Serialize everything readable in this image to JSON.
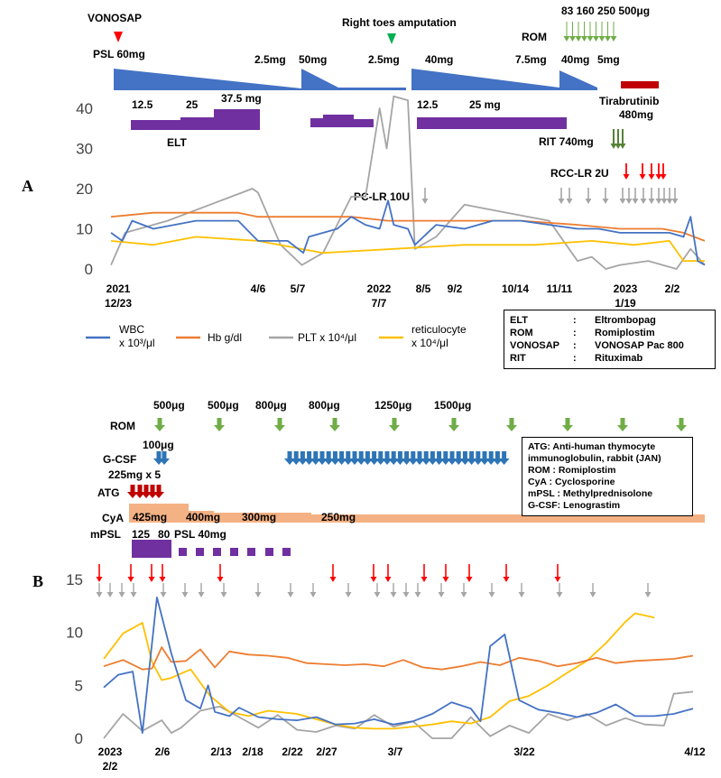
{
  "colors": {
    "wbc": "#4472C4",
    "hb": "#ED7D31",
    "plt": "#A5A5A5",
    "retic": "#FFC000",
    "psl": "#4472C4",
    "elt": "#7030A0",
    "tirab": "#C00000",
    "red_arrow": "#FF0000",
    "gray_arrow": "#A5A5A5",
    "green": "#70AD47",
    "rit": "#548235",
    "gcsf": "#2E75B6",
    "atg": "#C00000",
    "cya": "#F4B183",
    "mpsl": "#7030A0"
  },
  "panelA": {
    "label": "A",
    "vonosap": "VONOSAP",
    "psl_start": "PSL 60mg",
    "psl_doses": [
      "2.5mg",
      "50mg",
      "2.5mg",
      "40mg",
      "7.5mg",
      "40mg",
      "5mg"
    ],
    "amputation": "Right toes amputation",
    "rom_label": "ROM",
    "rom_doses": "83 160 250 500μg",
    "tirab_label": "Tirabrutinib",
    "tirab_dose": "480mg",
    "elt_doses": [
      "12.5",
      "25",
      "37.5 mg",
      "12.5",
      "25 mg"
    ],
    "elt_label": "ELT",
    "rit": "RIT 740mg",
    "rcc": "RCC-LR 2U",
    "pc": "PC-LR 10U",
    "date_labels": [
      [
        "2021",
        "12/23"
      ],
      [
        "4/6"
      ],
      [
        "5/7"
      ],
      [
        "2022",
        "7/7"
      ],
      [
        "8/5"
      ],
      [
        "9/2"
      ],
      [
        "10/14"
      ],
      [
        "11/11"
      ],
      [
        "2023",
        "1/19"
      ],
      [
        "2/2"
      ]
    ]
  },
  "legend": {
    "wbc": [
      "WBC",
      "x 10³/μl"
    ],
    "hb": "Hb g/dl",
    "plt": "PLT x 10⁴/μl",
    "retic": [
      "reticulocyte",
      "x 10⁴/μl"
    ]
  },
  "abbrA": [
    {
      "abbr": "ELT",
      "sep": ":",
      "full": "Eltrombopag"
    },
    {
      "abbr": "ROM",
      "sep": ":",
      "full": "Romiplostim"
    },
    {
      "abbr": "VONOSAP",
      "sep": ":",
      "full": "VONOSAP Pac 800"
    },
    {
      "abbr": "RIT",
      "sep": ":",
      "full": "Rituximab"
    }
  ],
  "panelB": {
    "label": "B",
    "rom_label": "ROM",
    "rom_doses": [
      "500μg",
      "500μg",
      "800μg",
      "800μg",
      "1250μg",
      "1500μg"
    ],
    "gcsf_label": "G-CSF",
    "gcsf_dose": "100μg",
    "atg_label": "ATG",
    "atg_dose": "225mg x 5",
    "cya_label": "CyA",
    "cya_doses": [
      "425mg",
      "400mg",
      "300mg",
      "250mg"
    ],
    "mpsl_label": "mPSL",
    "mpsl_doses": [
      "125",
      "80",
      "PSL 40mg"
    ],
    "date_labels": [
      [
        "2023",
        "2/2"
      ],
      [
        "2/6"
      ],
      [
        "2/13"
      ],
      [
        "2/18"
      ],
      [
        "2/22"
      ],
      [
        "2/27"
      ],
      [
        "3/7"
      ],
      [
        "3/22"
      ],
      [
        "4/12"
      ]
    ]
  },
  "abbrB": [
    "ATG: Anti-human thymocyte",
    "immunoglobulin, rabbit (JAN)",
    "ROM  : Romiplostim",
    "CyA   : Cyclosporine",
    "mPSL : Methylprednisolone",
    "G-CSF: Lenograstim"
  ],
  "chart_data": [
    {
      "type": "line",
      "title": "",
      "ylim": [
        0,
        45
      ],
      "yticks": [
        0,
        10,
        20,
        30,
        40
      ],
      "x_note": "day index from 2021-12-23",
      "series": [
        {
          "name": "WBC x 10³/μl",
          "points": [
            [
              0,
              9
            ],
            [
              8,
              7
            ],
            [
              15,
              12
            ],
            [
              30,
              10
            ],
            [
              60,
              12
            ],
            [
              90,
              12
            ],
            [
              104,
              7
            ],
            [
              125,
              7
            ],
            [
              136,
              4
            ],
            [
              140,
              8
            ],
            [
              160,
              10
            ],
            [
              170,
              13
            ],
            [
              180,
              11
            ],
            [
              190,
              10
            ],
            [
              196,
              17
            ],
            [
              200,
              11
            ],
            [
              210,
              10
            ],
            [
              215,
              6
            ],
            [
              230,
              11
            ],
            [
              250,
              10
            ],
            [
              270,
              12
            ],
            [
              290,
              12
            ],
            [
              310,
              11
            ],
            [
              330,
              10
            ],
            [
              345,
              10
            ],
            [
              360,
              9
            ],
            [
              380,
              9
            ],
            [
              395,
              9
            ],
            [
              405,
              8
            ],
            [
              410,
              13
            ],
            [
              415,
              2
            ],
            [
              420,
              1
            ]
          ]
        },
        {
          "name": "Hb g/dl",
          "points": [
            [
              0,
              13
            ],
            [
              30,
              14
            ],
            [
              60,
              14
            ],
            [
              90,
              14
            ],
            [
              104,
              13
            ],
            [
              136,
              13
            ],
            [
              170,
              13
            ],
            [
              196,
              12
            ],
            [
              220,
              12
            ],
            [
              250,
              12
            ],
            [
              290,
              12
            ],
            [
              330,
              11
            ],
            [
              360,
              10
            ],
            [
              390,
              10
            ],
            [
              405,
              9
            ],
            [
              420,
              7
            ]
          ]
        },
        {
          "name": "PLT x 10⁴/μl",
          "points": [
            [
              0,
              1
            ],
            [
              10,
              9
            ],
            [
              40,
              12
            ],
            [
              70,
              16
            ],
            [
              100,
              20
            ],
            [
              104,
              19
            ],
            [
              120,
              6
            ],
            [
              135,
              1
            ],
            [
              150,
              4
            ],
            [
              170,
              18
            ],
            [
              180,
              18
            ],
            [
              190,
              40
            ],
            [
              195,
              30
            ],
            [
              200,
              43
            ],
            [
              210,
              42
            ],
            [
              215,
              5
            ],
            [
              230,
              8
            ],
            [
              250,
              16
            ],
            [
              280,
              14
            ],
            [
              310,
              12
            ],
            [
              330,
              2
            ],
            [
              340,
              3
            ],
            [
              350,
              0
            ],
            [
              360,
              1
            ],
            [
              380,
              2
            ],
            [
              400,
              0
            ],
            [
              410,
              5
            ],
            [
              420,
              1
            ]
          ]
        },
        {
          "name": "reticulocyte x 10⁴/μl",
          "points": [
            [
              0,
              7
            ],
            [
              30,
              6
            ],
            [
              60,
              8
            ],
            [
              104,
              7
            ],
            [
              150,
              4
            ],
            [
              200,
              5
            ],
            [
              250,
              6
            ],
            [
              300,
              6
            ],
            [
              340,
              7
            ],
            [
              370,
              6
            ],
            [
              395,
              7
            ],
            [
              405,
              2
            ],
            [
              420,
              2
            ]
          ]
        }
      ]
    },
    {
      "type": "line",
      "title": "",
      "ylim": [
        0,
        15
      ],
      "yticks": [
        0,
        5,
        10,
        15
      ],
      "x_note": "day index from 2023-02-02",
      "series": [
        {
          "name": "WBC x 10³/μl",
          "points": [
            [
              0,
              4.8
            ],
            [
              1.5,
              6
            ],
            [
              3,
              6.3
            ],
            [
              4,
              0.5
            ],
            [
              5.5,
              13.3
            ],
            [
              7,
              8
            ],
            [
              8.5,
              3.6
            ],
            [
              10,
              2.8
            ],
            [
              10.8,
              5
            ],
            [
              11.5,
              2.5
            ],
            [
              13,
              2.1
            ],
            [
              14,
              2.9
            ],
            [
              16,
              2
            ],
            [
              18,
              1.8
            ],
            [
              20,
              1.7
            ],
            [
              22,
              2
            ],
            [
              24,
              1.3
            ],
            [
              26,
              1.4
            ],
            [
              28,
              1.8
            ],
            [
              30,
              1.3
            ],
            [
              32,
              1.6
            ],
            [
              34,
              2.3
            ],
            [
              36,
              3.4
            ],
            [
              38,
              2.8
            ],
            [
              39,
              1.6
            ],
            [
              40,
              8.7
            ],
            [
              41.5,
              9.8
            ],
            [
              43,
              3.6
            ],
            [
              45,
              2.7
            ],
            [
              47,
              2.4
            ],
            [
              49,
              2
            ],
            [
              51,
              2.4
            ],
            [
              53,
              3.2
            ],
            [
              55,
              2.1
            ],
            [
              57,
              2.1
            ],
            [
              59,
              2.3
            ],
            [
              61,
              2.8
            ]
          ]
        },
        {
          "name": "Hb g/dl",
          "points": [
            [
              0,
              6.8
            ],
            [
              2,
              7.4
            ],
            [
              4,
              6.5
            ],
            [
              5,
              6.6
            ],
            [
              6,
              8.6
            ],
            [
              7,
              7.2
            ],
            [
              8.5,
              7.3
            ],
            [
              10,
              8.4
            ],
            [
              11.5,
              6.7
            ],
            [
              13,
              8.2
            ],
            [
              15,
              7.9
            ],
            [
              17,
              7.8
            ],
            [
              19,
              7.6
            ],
            [
              21,
              7.1
            ],
            [
              23,
              7.0
            ],
            [
              25,
              6.9
            ],
            [
              27,
              7.0
            ],
            [
              29,
              6.8
            ],
            [
              31,
              7.4
            ],
            [
              33,
              6.7
            ],
            [
              35,
              6.5
            ],
            [
              37,
              6.8
            ],
            [
              39,
              7.2
            ],
            [
              41,
              6.9
            ],
            [
              43,
              7.6
            ],
            [
              45,
              7.3
            ],
            [
              47,
              6.8
            ],
            [
              49,
              7.1
            ],
            [
              51,
              7.6
            ],
            [
              53,
              7.1
            ],
            [
              55,
              7.3
            ],
            [
              57,
              7.4
            ],
            [
              59,
              7.5
            ],
            [
              61,
              7.8
            ]
          ]
        },
        {
          "name": "PLT x 10⁴/μl",
          "points": [
            [
              0,
              0
            ],
            [
              2,
              2.3
            ],
            [
              4,
              0.7
            ],
            [
              6,
              1.7
            ],
            [
              7,
              0.5
            ],
            [
              8,
              1
            ],
            [
              10,
              2.6
            ],
            [
              12,
              3
            ],
            [
              14,
              2
            ],
            [
              16,
              1
            ],
            [
              18,
              2.2
            ],
            [
              20,
              0.8
            ],
            [
              22,
              0.6
            ],
            [
              24,
              1.2
            ],
            [
              26,
              0.9
            ],
            [
              28,
              2.2
            ],
            [
              30,
              1.1
            ],
            [
              32,
              1.6
            ],
            [
              34,
              0
            ],
            [
              36,
              0
            ],
            [
              38,
              2
            ],
            [
              40,
              0.2
            ],
            [
              42,
              1.2
            ],
            [
              44,
              0.5
            ],
            [
              46,
              2.3
            ],
            [
              48,
              1.7
            ],
            [
              50,
              2.3
            ],
            [
              52,
              1.2
            ],
            [
              54,
              1.9
            ],
            [
              56,
              1.3
            ],
            [
              58,
              1.2
            ],
            [
              59,
              4.2
            ],
            [
              61,
              4.4
            ]
          ]
        },
        {
          "name": "reticulocyte x 10⁴/μl",
          "points": [
            [
              0,
              7.5
            ],
            [
              2,
              9.9
            ],
            [
              4,
              10.9
            ],
            [
              5,
              7.2
            ],
            [
              6,
              5.5
            ],
            [
              7,
              5.7
            ],
            [
              9,
              6.5
            ],
            [
              11,
              4
            ],
            [
              13,
              2.5
            ],
            [
              15,
              2.1
            ],
            [
              17,
              2.6
            ],
            [
              20,
              2.3
            ],
            [
              22,
              1.8
            ],
            [
              24,
              1.3
            ],
            [
              26,
              1.0
            ],
            [
              28,
              0.9
            ],
            [
              30,
              0.9
            ],
            [
              32,
              1.1
            ],
            [
              34,
              1.3
            ],
            [
              36,
              1.6
            ],
            [
              38,
              1.4
            ],
            [
              40,
              2
            ],
            [
              42,
              3.5
            ],
            [
              44,
              4
            ],
            [
              46,
              5
            ],
            [
              48,
              6.2
            ],
            [
              50,
              7.3
            ],
            [
              52,
              9
            ],
            [
              54,
              11
            ],
            [
              55,
              11.8
            ],
            [
              57,
              11.4
            ]
          ]
        }
      ]
    }
  ]
}
